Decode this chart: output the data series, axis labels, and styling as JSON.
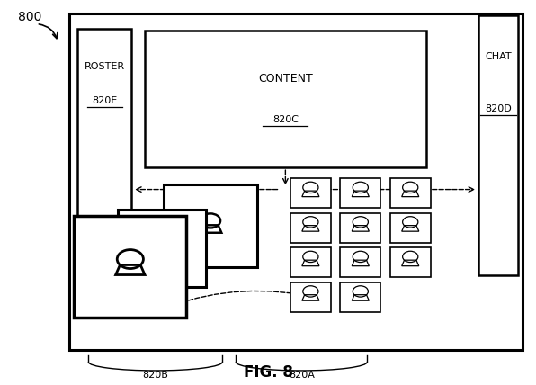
{
  "bg_color": "#ffffff",
  "border_color": "#000000",
  "fig_label": "FIG. 8",
  "fig_number": "800",
  "labels": {
    "content_text": "CONTENT",
    "content_ref": "820C",
    "roster_text": "ROSTER",
    "roster_ref": "820E",
    "chat_text": "CHAT",
    "chat_ref": "820D",
    "fig_text": "FIG. 8",
    "num_800": "800",
    "label_820A": "820A",
    "label_820B": "820B"
  }
}
